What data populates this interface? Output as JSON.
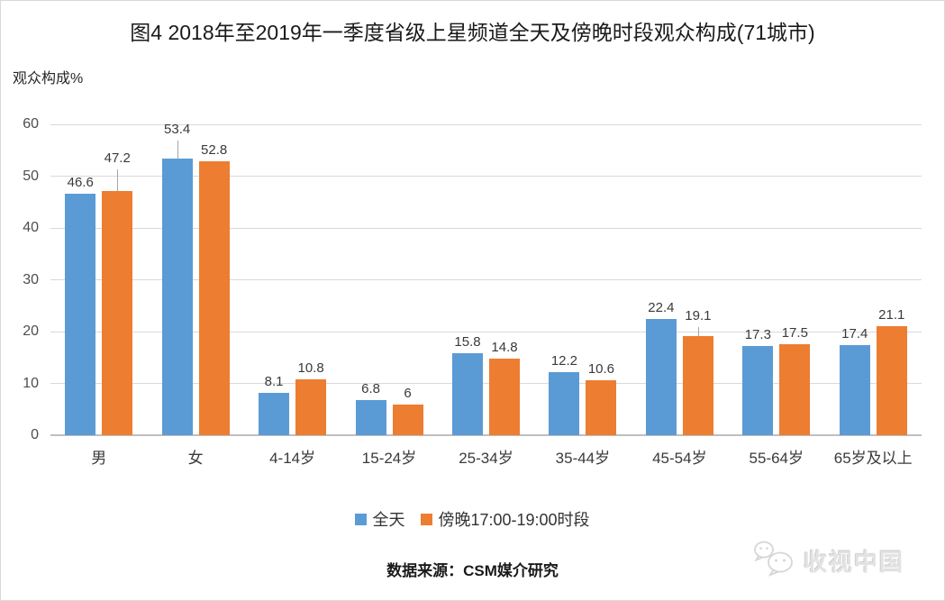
{
  "page": {
    "source_note": "数据来源：CSM媒介研究",
    "watermark_text": "收视中国",
    "watermark_icon": "wechat-chat-bubbles-icon",
    "background": "#FFFFFF",
    "border_color": "#D9D9D9"
  },
  "chart_data": {
    "type": "bar",
    "title": "图4 2018年至2019年一季度省级上星频道全天及傍晚时段观众构成(71城市)",
    "ylabel": "观众构成%",
    "categories": [
      "男",
      "女",
      "4-14岁",
      "15-24岁",
      "25-34岁",
      "35-44岁",
      "45-54岁",
      "55-64岁",
      "65岁及以上"
    ],
    "series": [
      {
        "name": "全天",
        "color": "#5B9BD5",
        "values": [
          46.6,
          53.4,
          8.1,
          6.8,
          15.8,
          12.2,
          22.4,
          17.3,
          17.4
        ]
      },
      {
        "name": "傍晚17:00-19:00时段",
        "color": "#ED7D31",
        "values": [
          47.2,
          52.8,
          10.8,
          6,
          14.8,
          10.6,
          19.1,
          17.5,
          21.1
        ]
      }
    ],
    "ylim": [
      0,
      60
    ],
    "ytick_step": 10,
    "grid": true,
    "data_labels": true,
    "legend_position": "bottom",
    "label_leaders": [
      {
        "series": 1,
        "index": 0,
        "raise": 24
      },
      {
        "series": 0,
        "index": 1,
        "raise": 20
      },
      {
        "series": 1,
        "index": 6,
        "raise": 10
      }
    ],
    "colors": {
      "gridline": "#D9D9D9",
      "axis_line": "#BFBFBF",
      "tick_text": "#4D4D4D",
      "label_text": "#3A3A3A"
    }
  }
}
